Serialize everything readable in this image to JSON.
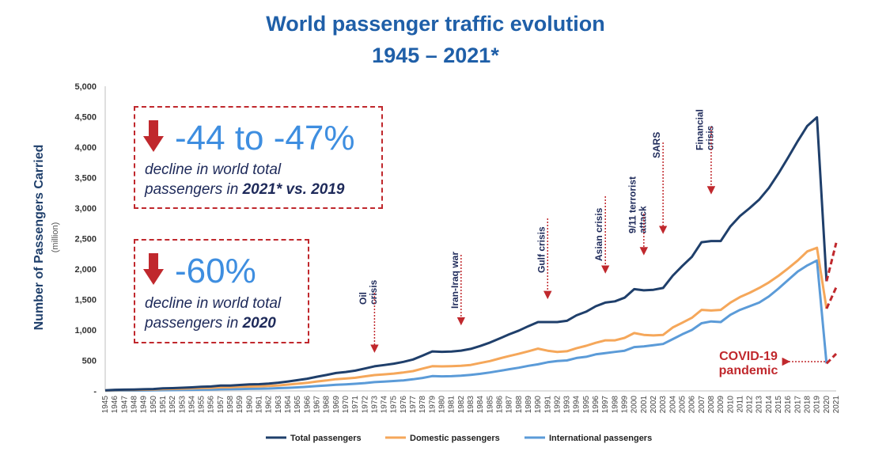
{
  "page": {
    "title_line1": "World passenger traffic evolution",
    "title_line2": "1945 – 2021*"
  },
  "callouts": {
    "c2021": {
      "value": "-44 to -47%",
      "line1": "decline in world total",
      "line2_pre": "passengers in ",
      "line2_bold": "2021* vs. 2019"
    },
    "c2020": {
      "value": "-60%",
      "line1": "decline in world total",
      "line2_pre": "passengers in ",
      "line2_bold": "2020"
    }
  },
  "colors": {
    "total": "#1f3f6b",
    "domestic": "#f5a75a",
    "international": "#5b9bd8",
    "accent": "#c0282d",
    "title": "#1f5fa8"
  },
  "chart_data": {
    "type": "line",
    "title": "World passenger traffic evolution 1945 – 2021*",
    "ylabel": "Number of Passengers Carried",
    "ylabel_unit": "(million)",
    "xlabel": "",
    "ylim": [
      0,
      5000
    ],
    "yticks": [
      0,
      500,
      1000,
      1500,
      2000,
      2500,
      3000,
      3500,
      4000,
      4500,
      5000
    ],
    "ytick_labels": [
      "-",
      "500",
      "1,000",
      "1,500",
      "2,000",
      "2,500",
      "3,000",
      "3,500",
      "4,000",
      "4,500",
      "5,000"
    ],
    "x": [
      1945,
      1946,
      1947,
      1948,
      1949,
      1950,
      1951,
      1952,
      1953,
      1954,
      1955,
      1956,
      1957,
      1958,
      1959,
      1960,
      1961,
      1962,
      1963,
      1964,
      1965,
      1966,
      1967,
      1968,
      1969,
      1970,
      1971,
      1972,
      1973,
      1974,
      1975,
      1976,
      1977,
      1978,
      1979,
      1980,
      1981,
      1982,
      1983,
      1984,
      1985,
      1986,
      1987,
      1988,
      1989,
      1990,
      1991,
      1992,
      1993,
      1994,
      1995,
      1996,
      1997,
      1998,
      1999,
      2000,
      2001,
      2002,
      2003,
      2004,
      2005,
      2006,
      2007,
      2008,
      2009,
      2010,
      2011,
      2012,
      2013,
      2014,
      2015,
      2016,
      2017,
      2018,
      2019,
      2020,
      2021
    ],
    "series": [
      {
        "name": "Total passengers",
        "values": [
          9,
          18,
          21,
          24,
          27,
          31,
          42,
          46,
          52,
          59,
          68,
          73,
          87,
          88,
          98,
          106,
          111,
          121,
          135,
          155,
          177,
          200,
          233,
          261,
          293,
          311,
          333,
          368,
          404,
          425,
          447,
          476,
          516,
          579,
          648,
          642,
          647,
          661,
          689,
          738,
          793,
          860,
          929,
          989,
          1062,
          1130,
          1130,
          1130,
          1150,
          1240,
          1300,
          1390,
          1450,
          1470,
          1530,
          1670,
          1650,
          1660,
          1690,
          1890,
          2050,
          2200,
          2440,
          2460,
          2460,
          2700,
          2870,
          3000,
          3140,
          3330,
          3570,
          3830,
          4100,
          4350,
          4490,
          1800,
          null
        ]
      },
      {
        "name": "Domestic passengers",
        "values": [
          7,
          13,
          15,
          17,
          19,
          22,
          30,
          33,
          37,
          41,
          47,
          50,
          60,
          60,
          67,
          72,
          75,
          82,
          90,
          104,
          118,
          133,
          154,
          172,
          192,
          203,
          216,
          239,
          260,
          272,
          285,
          303,
          325,
          366,
          405,
          403,
          406,
          412,
          426,
          458,
          490,
          532,
          573,
          609,
          650,
          693,
          660,
          640,
          650,
          700,
          740,
          790,
          830,
          830,
          870,
          950,
          920,
          910,
          920,
          1040,
          1120,
          1200,
          1330,
          1320,
          1330,
          1450,
          1540,
          1610,
          1690,
          1780,
          1890,
          2010,
          2140,
          2290,
          2350,
          1350,
          null
        ]
      },
      {
        "name": "International passengers",
        "values": [
          2,
          5,
          6,
          7,
          8,
          9,
          12,
          13,
          15,
          18,
          21,
          23,
          27,
          28,
          31,
          34,
          36,
          39,
          45,
          51,
          59,
          67,
          79,
          89,
          101,
          108,
          117,
          129,
          144,
          153,
          162,
          173,
          191,
          213,
          243,
          239,
          241,
          249,
          263,
          280,
          303,
          328,
          356,
          380,
          412,
          437,
          470,
          490,
          500,
          540,
          560,
          600,
          620,
          640,
          660,
          720,
          730,
          750,
          770,
          850,
          930,
          1000,
          1110,
          1140,
          1130,
          1250,
          1330,
          1390,
          1450,
          1550,
          1680,
          1820,
          1960,
          2060,
          2140,
          450,
          null
        ]
      }
    ],
    "projections_2021": [
      {
        "name": "Total passengers",
        "from": 1800,
        "to": 2430
      },
      {
        "name": "Domestic passengers",
        "from": 1350,
        "to": 1700
      },
      {
        "name": "International passengers",
        "from": 450,
        "to": 610
      }
    ],
    "legend": [
      "Total passengers",
      "Domestic passengers",
      "International passengers"
    ],
    "legend_position": "bottom",
    "annotations": [
      {
        "id": "oil",
        "lines": [
          "Oil",
          "crisis"
        ],
        "year": 1973,
        "arrow_to": 600
      },
      {
        "id": "iran",
        "lines": [
          "Iran-Iraq war"
        ],
        "year": 1982,
        "arrow_to": 1050
      },
      {
        "id": "gulf",
        "lines": [
          "Gulf crisis"
        ],
        "year": 1991,
        "arrow_to": 1480
      },
      {
        "id": "asian",
        "lines": [
          "Asian crisis"
        ],
        "year": 1997,
        "arrow_to": 1900
      },
      {
        "id": "911",
        "lines": [
          "9/11 terrorist",
          "attack"
        ],
        "year": 2001,
        "arrow_to": 2200
      },
      {
        "id": "sars",
        "lines": [
          "SARS"
        ],
        "year": 2003,
        "arrow_to": 2550
      },
      {
        "id": "fin",
        "lines": [
          "Financial",
          "crisis"
        ],
        "year": 2008,
        "arrow_to": 3200
      },
      {
        "id": "covid",
        "lines": [
          "COVID-19",
          "pandemic"
        ],
        "year": 2020,
        "arrow_to": 650
      }
    ]
  }
}
